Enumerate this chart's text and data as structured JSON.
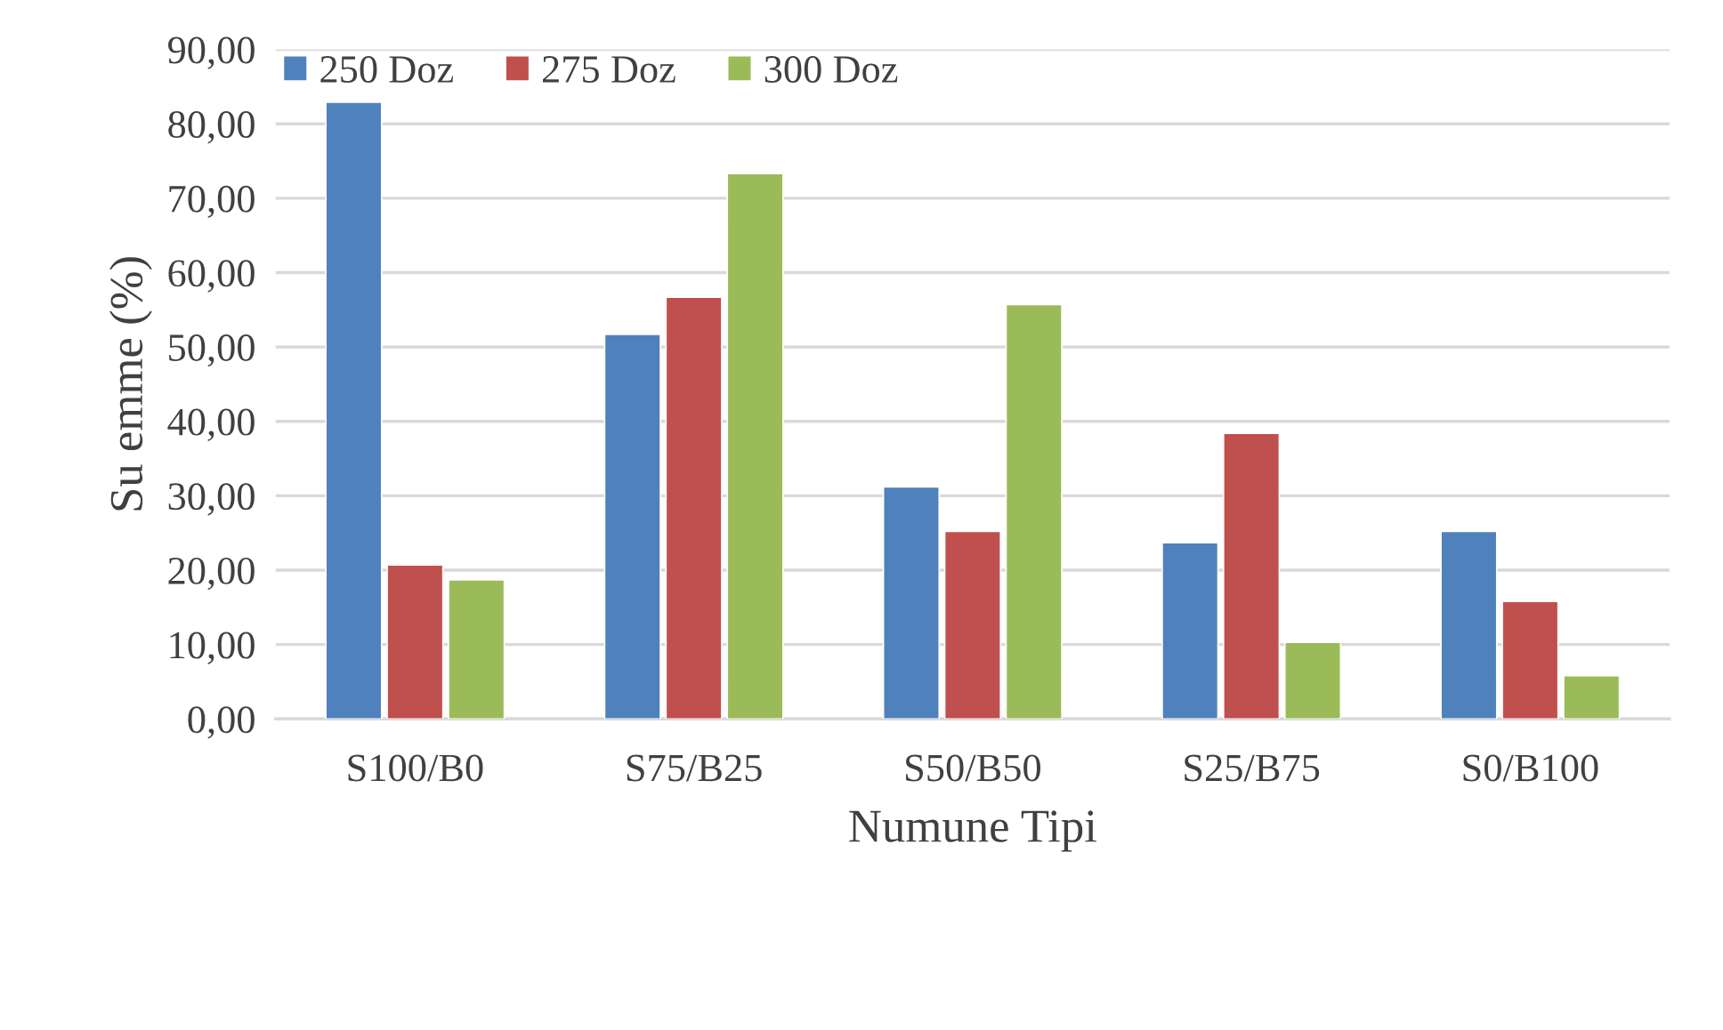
{
  "chart_data": {
    "type": "bar",
    "xlabel": "Numune Tipi",
    "ylabel": "Su emme (%)",
    "categories": [
      "S100/B0",
      "S75/B25",
      "S50/B50",
      "S25/B75",
      "S0/B100"
    ],
    "series": [
      {
        "name": "250 Doz",
        "color": "#4f81bd",
        "values": [
          82.9,
          51.7,
          31.2,
          23.7,
          25.2
        ]
      },
      {
        "name": "275 Doz",
        "color": "#c0504d",
        "values": [
          20.7,
          56.7,
          25.2,
          38.4,
          15.8
        ]
      },
      {
        "name": "300 Doz",
        "color": "#9bbb59",
        "values": [
          18.7,
          73.3,
          55.7,
          10.3,
          5.8
        ]
      }
    ],
    "ylim": [
      0,
      90
    ],
    "yticks": [
      {
        "value": 0,
        "label": "0,00"
      },
      {
        "value": 10,
        "label": "10,00"
      },
      {
        "value": 20,
        "label": "20,00"
      },
      {
        "value": 30,
        "label": "30,00"
      },
      {
        "value": 40,
        "label": "40,00"
      },
      {
        "value": 50,
        "label": "50,00"
      },
      {
        "value": 60,
        "label": "60,00"
      },
      {
        "value": 70,
        "label": "70,00"
      },
      {
        "value": 80,
        "label": "80,00"
      },
      {
        "value": 90,
        "label": "90,00"
      }
    ],
    "grid": "y",
    "legend": "top left"
  }
}
